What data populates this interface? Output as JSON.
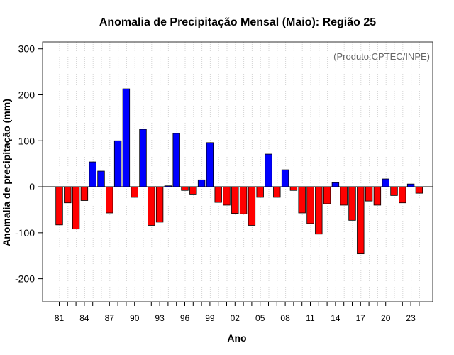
{
  "chart_data": {
    "type": "bar",
    "title": "Anomalia de Precipitação Mensal (Maio): Região 25",
    "xlabel": "Ano",
    "ylabel": "Anomalia de precipitação (mm)",
    "credit": "(Produto:CPTEC/INPE)",
    "ylim": [
      -250,
      315
    ],
    "yticks": [
      -200,
      -100,
      0,
      100,
      200,
      300
    ],
    "grid": "vertical dotted",
    "xtick_labels": [
      "81",
      "84",
      "87",
      "90",
      "93",
      "96",
      "99",
      "02",
      "05",
      "08",
      "11",
      "14",
      "17",
      "20",
      "23"
    ],
    "categories": [
      "1981",
      "1982",
      "1983",
      "1984",
      "1985",
      "1986",
      "1987",
      "1988",
      "1989",
      "1990",
      "1991",
      "1992",
      "1993",
      "1994",
      "1995",
      "1996",
      "1997",
      "1998",
      "1999",
      "2000",
      "2001",
      "2002",
      "2003",
      "2004",
      "2005",
      "2006",
      "2007",
      "2008",
      "2009",
      "2010",
      "2011",
      "2012",
      "2013",
      "2014",
      "2015",
      "2016",
      "2017",
      "2018",
      "2019",
      "2020",
      "2021",
      "2022",
      "2023",
      "2024"
    ],
    "values": [
      -83,
      -35,
      -92,
      -30,
      54,
      34,
      -57,
      100,
      213,
      -23,
      125,
      -84,
      -77,
      2,
      116,
      -8,
      -16,
      15,
      96,
      -34,
      -40,
      -58,
      -59,
      -84,
      -23,
      71,
      -23,
      37,
      -8,
      -57,
      -80,
      -103,
      -37,
      9,
      -40,
      -73,
      -146,
      -31,
      -40,
      17,
      -19,
      -35,
      6,
      -14
    ],
    "colors": {
      "positive": "#0000ff",
      "negative": "#ff0000",
      "outline": "#000000"
    }
  }
}
